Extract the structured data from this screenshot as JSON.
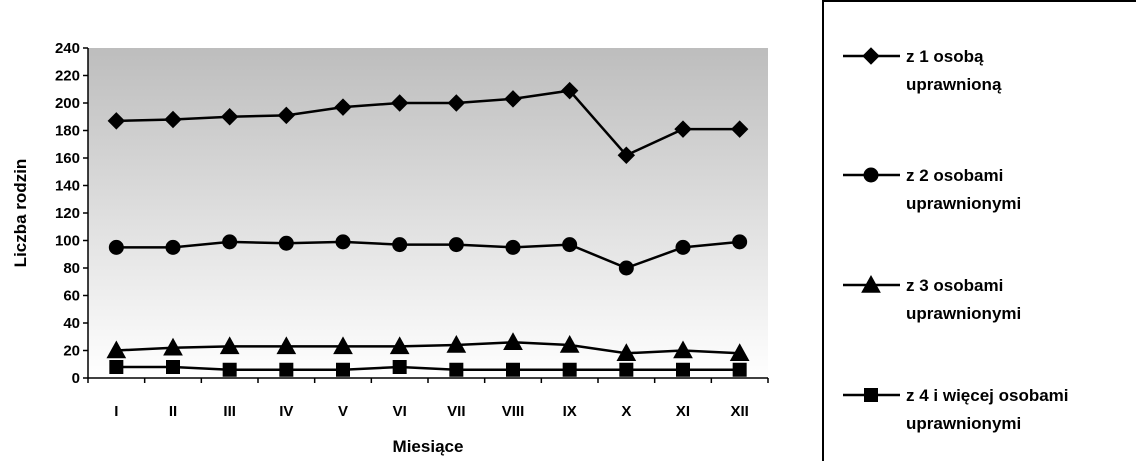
{
  "chart_data": {
    "type": "line",
    "xlabel": "Miesiące",
    "ylabel": "Liczba rodzin",
    "ylim": [
      0,
      240
    ],
    "yticks": [
      0,
      20,
      40,
      60,
      80,
      100,
      120,
      140,
      160,
      180,
      200,
      220,
      240
    ],
    "categories": [
      "I",
      "II",
      "III",
      "IV",
      "V",
      "VI",
      "VII",
      "VIII",
      "IX",
      "X",
      "XI",
      "XII"
    ],
    "grid": false,
    "legend_position": "right",
    "series": [
      {
        "name": "z 1 osobą uprawnioną",
        "marker": "diamond",
        "values": [
          187,
          188,
          190,
          191,
          197,
          200,
          200,
          203,
          209,
          162,
          181,
          181
        ]
      },
      {
        "name": "z 2 osobami uprawnionymi",
        "marker": "circle",
        "values": [
          95,
          95,
          99,
          98,
          99,
          97,
          97,
          95,
          97,
          80,
          95,
          99
        ]
      },
      {
        "name": "z 3 osobami uprawnionymi",
        "marker": "triangle",
        "values": [
          20,
          22,
          23,
          23,
          23,
          23,
          24,
          26,
          24,
          18,
          20,
          18
        ]
      },
      {
        "name": "z 4 i więcej osobami uprawnionymi",
        "marker": "square",
        "values": [
          8,
          8,
          6,
          6,
          6,
          8,
          6,
          6,
          6,
          6,
          6,
          6
        ]
      }
    ],
    "legend_lines": [
      [
        "z 1 osobą",
        "uprawnioną"
      ],
      [
        "z 2 osobami",
        "uprawnionymi"
      ],
      [
        "z 3 osobami",
        "uprawnionymi"
      ],
      [
        "z 4 i więcej osobami",
        "uprawnionymi"
      ]
    ]
  }
}
